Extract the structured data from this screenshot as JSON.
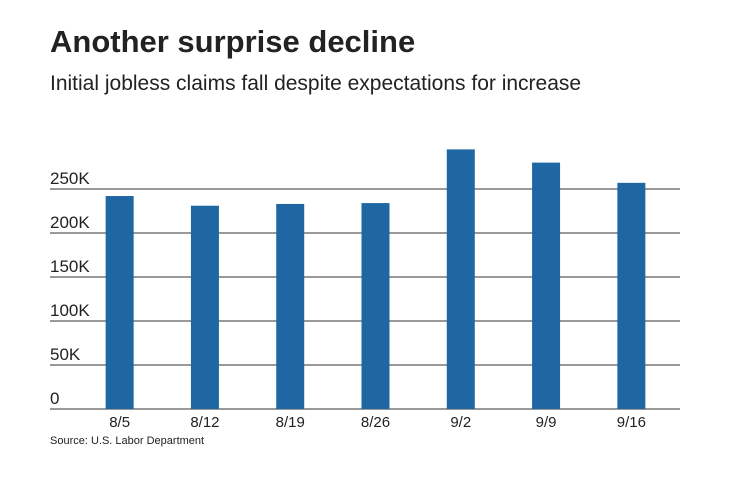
{
  "chart_data": {
    "type": "bar",
    "title": "Another surprise decline",
    "subtitle": "Initial jobless claims fall despite expectations for increase",
    "source": "Source: U.S. Labor Department",
    "categories": [
      "8/5",
      "8/12",
      "8/19",
      "8/26",
      "9/2",
      "9/9",
      "9/16"
    ],
    "values": [
      242000,
      231000,
      233000,
      234000,
      295000,
      280000,
      257000
    ],
    "color": "#1f67a3",
    "ylim": [
      0,
      300000
    ],
    "yticks": [
      0,
      {
        "value": 50000,
        "label": "50K"
      },
      {
        "value": 100000,
        "label": "100K"
      },
      {
        "value": 150000,
        "label": "150K"
      },
      {
        "value": 200000,
        "label": "200K"
      },
      {
        "value": 250000,
        "label": "250K"
      }
    ],
    "grid": true
  }
}
